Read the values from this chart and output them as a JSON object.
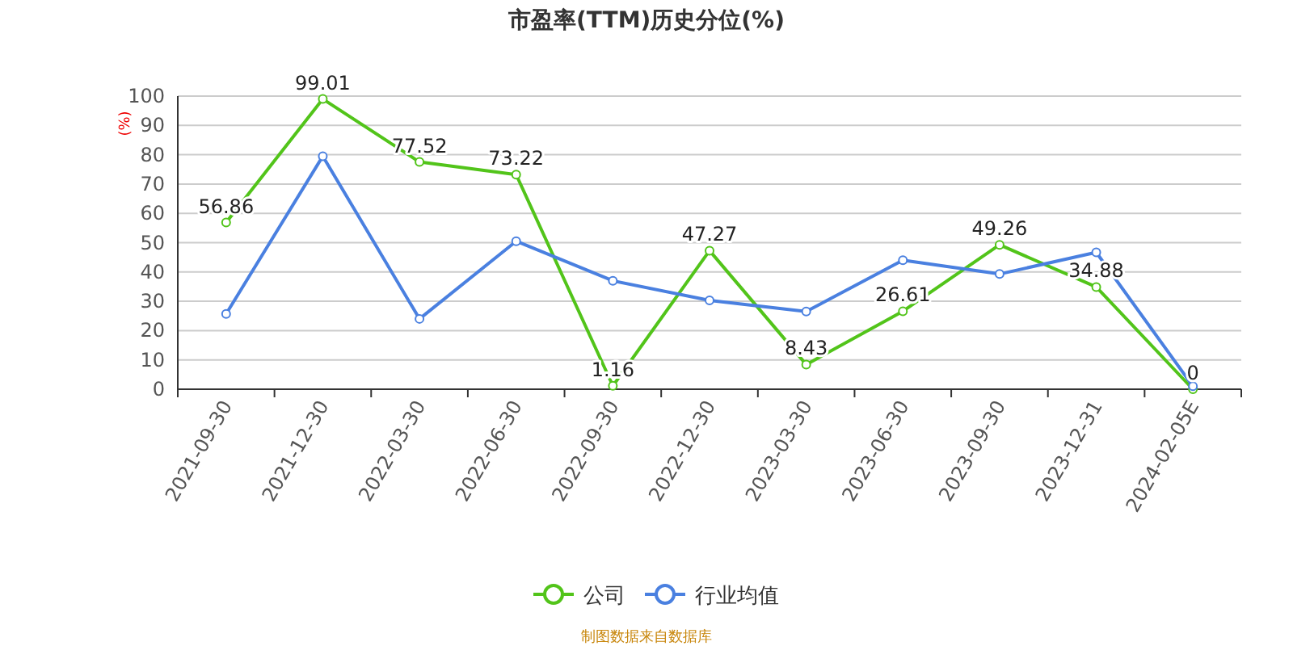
{
  "chart_data": {
    "type": "line",
    "title": "市盈率(TTM)历史分位(%)",
    "ylabel": "(%)",
    "annotations": [
      "制图数据来自数据库"
    ],
    "categories": [
      "2021-09-30",
      "2021-12-30",
      "2022-03-30",
      "2022-06-30",
      "2022-09-30",
      "2022-12-30",
      "2023-03-30",
      "2023-06-30",
      "2023-09-30",
      "2023-12-31",
      "2024-02-05E"
    ],
    "series": [
      {
        "name": "公司",
        "color": "#52c41a",
        "values": [
          56.86,
          99.01,
          77.52,
          73.22,
          1.16,
          47.27,
          8.43,
          26.61,
          49.26,
          34.88,
          0
        ],
        "value_labels": [
          "56.86",
          "99.01",
          "77.52",
          "73.22",
          "1.16",
          "47.27",
          "8.43",
          "26.61",
          "49.26",
          "34.88",
          "0"
        ]
      },
      {
        "name": "行业均值",
        "color": "#4a80e0",
        "values": [
          25.7,
          79.5,
          24,
          50.5,
          37,
          30.3,
          26.5,
          44,
          39.3,
          46.7,
          1
        ]
      }
    ],
    "ylim": [
      0,
      100
    ],
    "yticks": [
      0,
      10,
      20,
      30,
      40,
      50,
      60,
      70,
      80,
      90,
      100
    ],
    "grid": "y",
    "legend": "bottom",
    "marker": "circle",
    "line_style": "solid"
  }
}
